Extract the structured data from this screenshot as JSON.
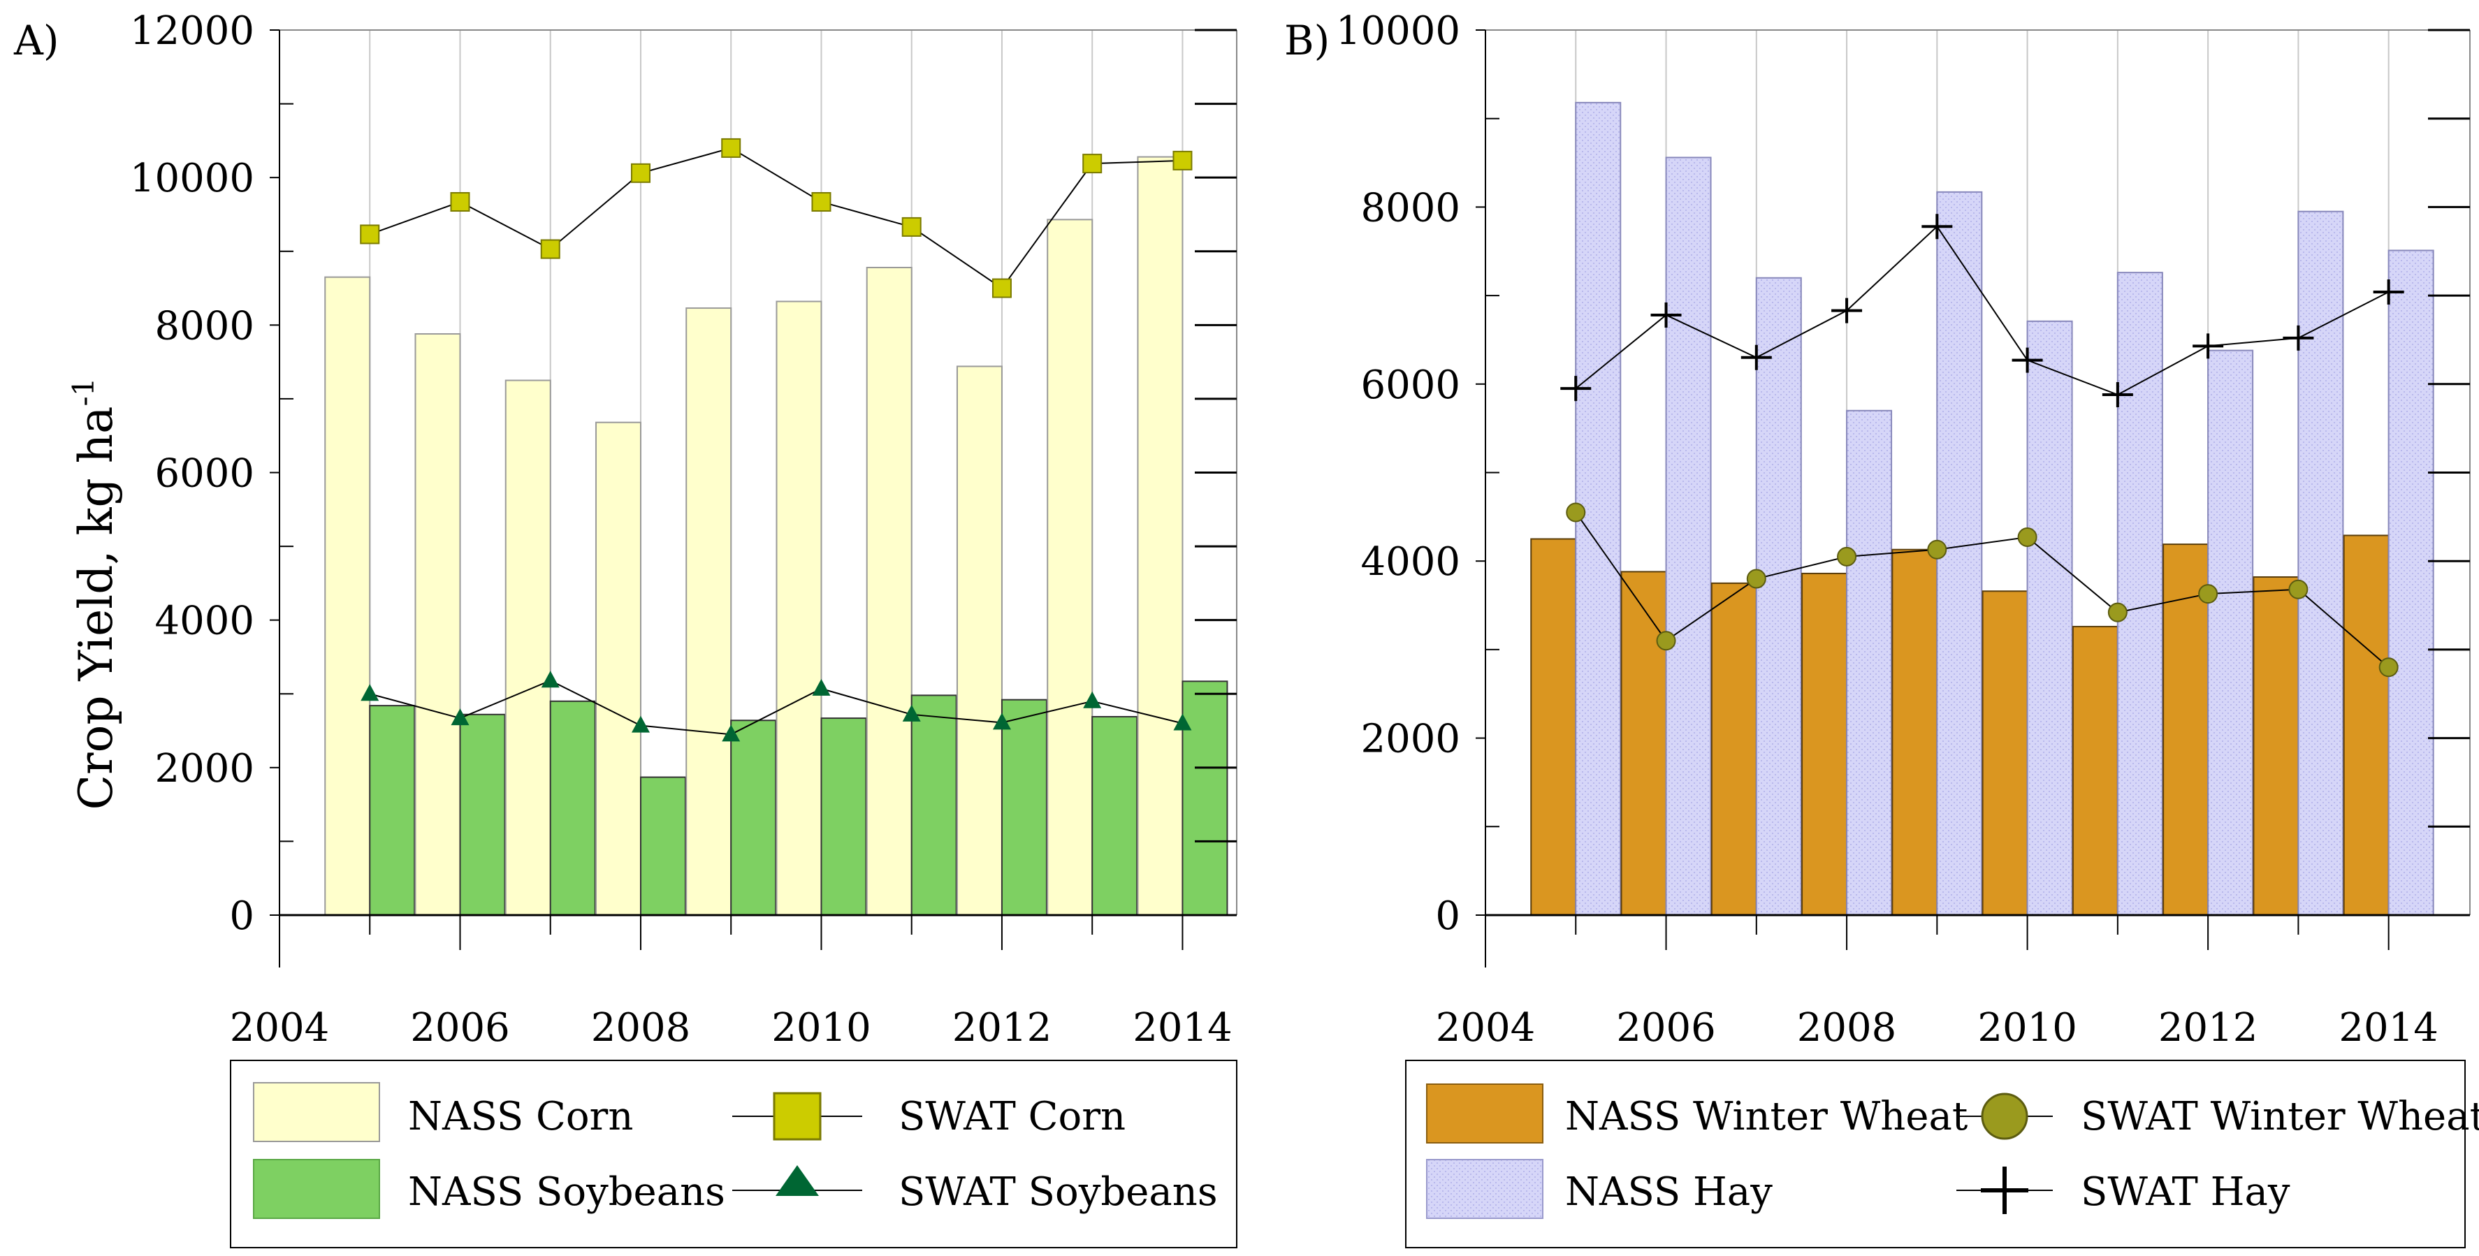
{
  "chart_data": [
    {
      "id": "A",
      "type": "bar",
      "panel_label": "A)",
      "title": "",
      "xlabel": "",
      "ylabel": "Crop Yield, kg ha",
      "ylabel_superscript": "-1",
      "xlim": [
        2004,
        2014.6
      ],
      "ylim": [
        0,
        12000
      ],
      "x_ticks": [
        "2004",
        "2006",
        "2008",
        "2010",
        "2012",
        "2014"
      ],
      "y_ticks": [
        "0",
        "2000",
        "4000",
        "6000",
        "8000",
        "10000",
        "12000"
      ],
      "years": [
        2005,
        2006,
        2007,
        2008,
        2009,
        2010,
        2011,
        2012,
        2013,
        2014
      ],
      "series": [
        {
          "name": "NASS Corn",
          "kind": "bar",
          "values": [
            8650,
            7880,
            7250,
            6680,
            8230,
            8320,
            8780,
            7440,
            9430,
            10280
          ]
        },
        {
          "name": "NASS Soybeans",
          "kind": "bar",
          "values": [
            2840,
            2720,
            2900,
            1870,
            2640,
            2670,
            2980,
            2920,
            2690,
            3170
          ]
        },
        {
          "name": "SWAT Corn",
          "kind": "line",
          "marker": "square",
          "values": [
            9230,
            9670,
            9030,
            10060,
            10400,
            9670,
            9330,
            8500,
            10190,
            10230
          ]
        },
        {
          "name": "SWAT Soybeans",
          "kind": "line",
          "marker": "triangle",
          "values": [
            3000,
            2670,
            3180,
            2570,
            2450,
            3070,
            2720,
            2610,
            2900,
            2600
          ]
        }
      ],
      "legend": [
        "NASS Corn",
        "SWAT Corn",
        "NASS Soybeans",
        "SWAT Soybeans"
      ],
      "legend_position": "bottom"
    },
    {
      "id": "B",
      "type": "bar",
      "panel_label": "B)",
      "title": "",
      "xlabel": "",
      "ylabel": "",
      "xlim": [
        2004,
        2014.9
      ],
      "ylim": [
        0,
        10000
      ],
      "x_ticks": [
        "2004",
        "2006",
        "2008",
        "2010",
        "2012",
        "2014"
      ],
      "y_ticks": [
        "0",
        "2000",
        "4000",
        "6000",
        "8000",
        "10000"
      ],
      "years": [
        2005,
        2006,
        2007,
        2008,
        2009,
        2010,
        2011,
        2012,
        2013,
        2014
      ],
      "series": [
        {
          "name": "NASS Winter Wheat",
          "kind": "bar",
          "values": [
            4250,
            3880,
            3750,
            3860,
            4130,
            3660,
            3260,
            4190,
            3820,
            4290
          ]
        },
        {
          "name": "NASS Hay",
          "kind": "bar",
          "values": [
            9180,
            8560,
            7200,
            5700,
            8170,
            6710,
            7260,
            6380,
            7950,
            7510
          ]
        },
        {
          "name": "SWAT Winter Wheat",
          "kind": "line",
          "marker": "circle",
          "values": [
            4550,
            3100,
            3800,
            4050,
            4130,
            4270,
            3420,
            3630,
            3680,
            2800
          ]
        },
        {
          "name": "SWAT Hay",
          "kind": "line",
          "marker": "plus",
          "values": [
            5950,
            6780,
            6300,
            6830,
            7780,
            6270,
            5880,
            6430,
            6520,
            7040
          ]
        }
      ],
      "legend": [
        "NASS Winter Wheat",
        "SWAT Winter Wheat",
        "NASS Hay",
        "SWAT Hay"
      ],
      "legend_position": "bottom"
    }
  ],
  "colors": {
    "corn_bar": "#FFFFCC",
    "soy_bar": "#7ED062",
    "swat_corn": "#CCCC00",
    "swat_soy": "#006633",
    "wheat_bar": "#DA9620",
    "hay_bar": "#D2D2F6",
    "swat_wheat": "#9A9A1E",
    "swat_hay": "#000000"
  }
}
